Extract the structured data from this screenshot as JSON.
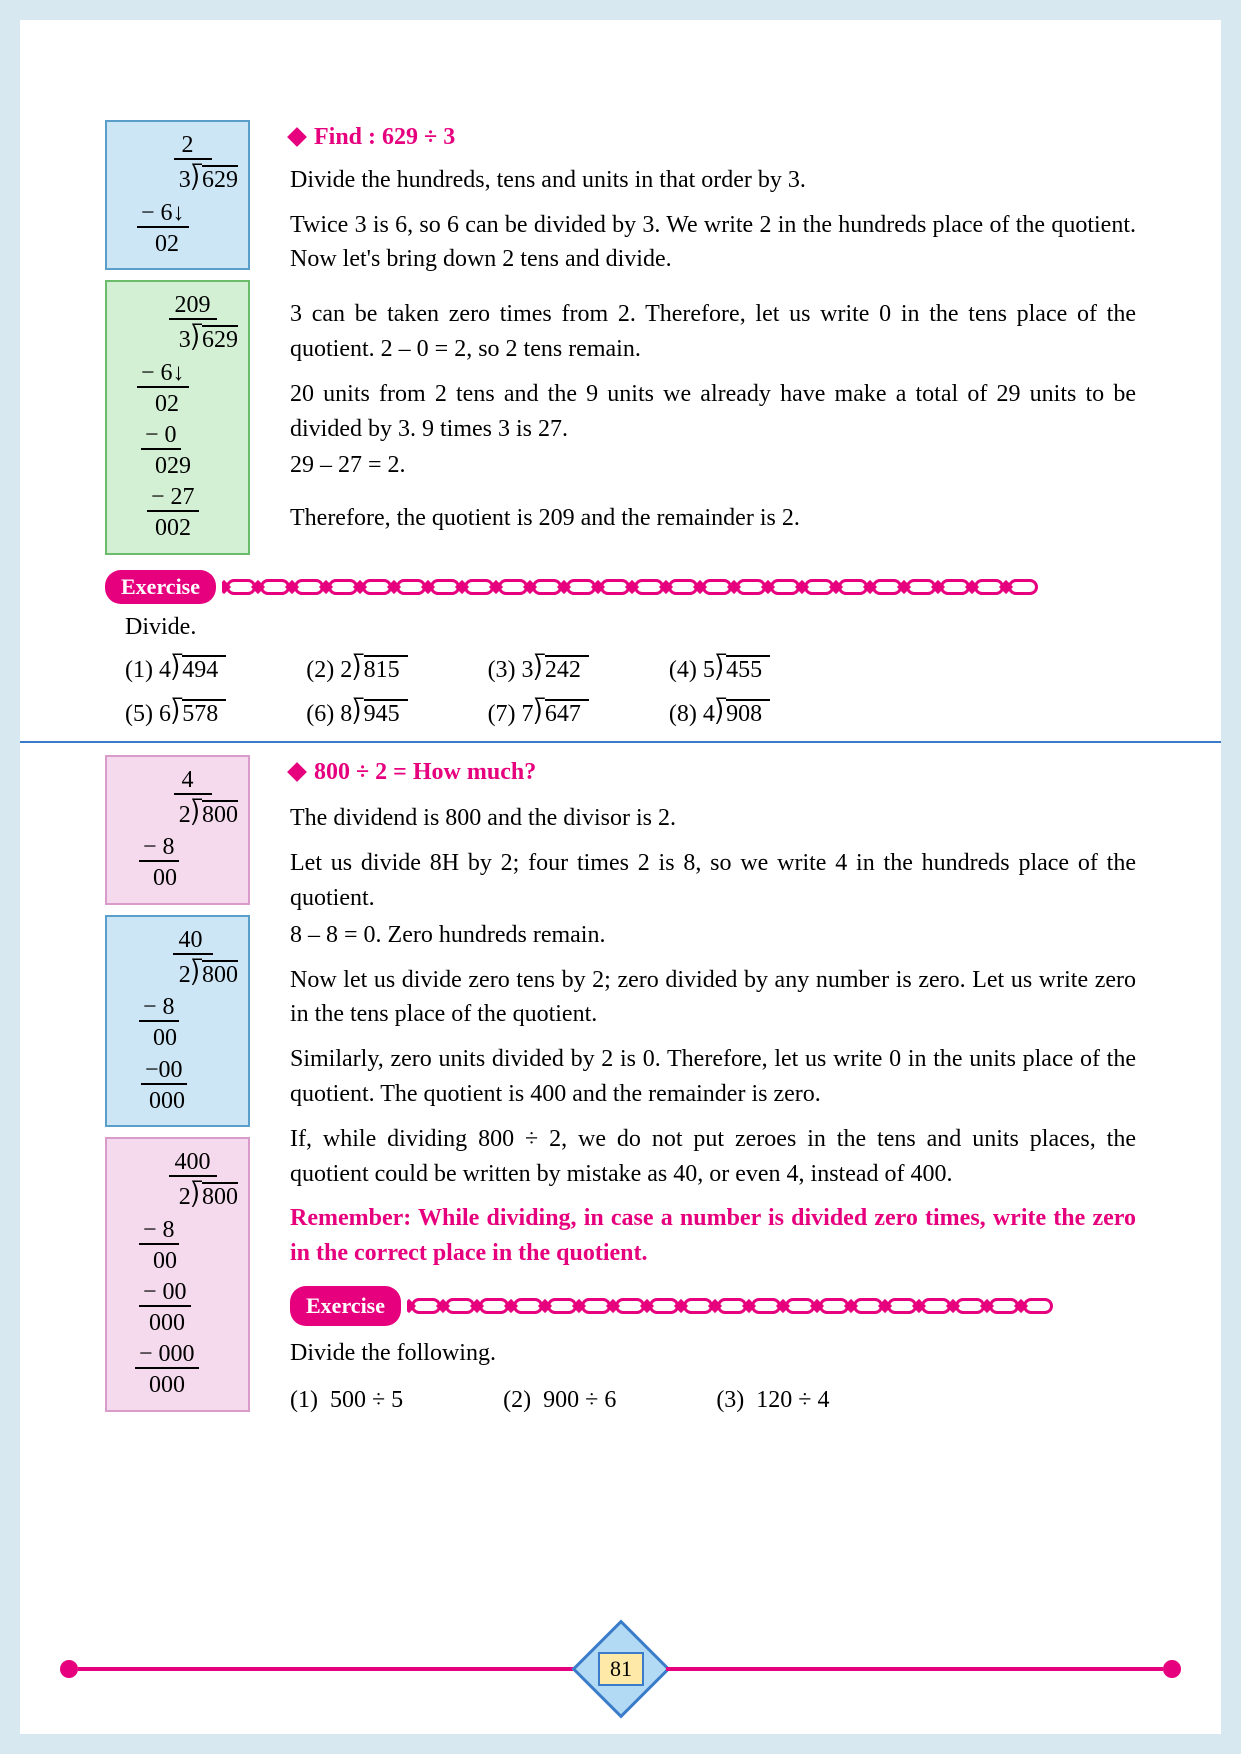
{
  "section1": {
    "heading": "Find : 629 ÷ 3",
    "box1": {
      "bg": "#cce6f5",
      "border": "#5a9fc9",
      "quotient": "2",
      "divisor": "3",
      "dividend": "629",
      "lines": [
        "− 6↓",
        "02"
      ]
    },
    "box2": {
      "bg": "#d4f0d4",
      "border": "#6abb6a",
      "quotient": "209",
      "divisor": "3",
      "dividend": "629",
      "lines": [
        "− 6↓",
        "02",
        "−  0",
        "029",
        "− 27",
        "002"
      ]
    },
    "p1": "Divide the hundreds, tens and units in that order by 3.",
    "p2": "Twice 3 is 6, so 6 can be divided by 3. We write 2 in the hundreds place of the quotient. Now let's bring down 2 tens and divide.",
    "p3": "3 can be taken zero times from 2. Therefore, let us write 0 in the tens place of the quotient. 2 – 0 = 2, so 2 tens remain.",
    "p4": "20 units from 2 tens and the 9 units we already have make a total of 29 units to be divided by 3. 9 times 3 is 27.",
    "p5": "29 – 27 = 2.",
    "p6": "Therefore, the quotient is 209 and the remainder is 2."
  },
  "exercise1": {
    "label": "Exercise",
    "instruction": "Divide.",
    "problems": [
      {
        "n": "(1)",
        "d": "4",
        "v": "494"
      },
      {
        "n": "(2)",
        "d": "2",
        "v": "815"
      },
      {
        "n": "(3)",
        "d": "3",
        "v": "242"
      },
      {
        "n": "(4)",
        "d": "5",
        "v": "455"
      },
      {
        "n": "(5)",
        "d": "6",
        "v": "578"
      },
      {
        "n": "(6)",
        "d": "8",
        "v": "945"
      },
      {
        "n": "(7)",
        "d": "7",
        "v": "647"
      },
      {
        "n": "(8)",
        "d": "4",
        "v": "908"
      }
    ]
  },
  "section2": {
    "heading": "800 ÷ 2  = How much?",
    "box1": {
      "bg": "#f5d9ed",
      "border": "#d99bc9",
      "quotient": "4",
      "divisor": "2",
      "dividend": "800",
      "lines": [
        "− 8",
        "00"
      ]
    },
    "box2": {
      "bg": "#cce6f5",
      "border": "#5a9fc9",
      "quotient": "40",
      "divisor": "2",
      "dividend": "800",
      "lines": [
        "− 8",
        "00",
        "−00",
        "000"
      ]
    },
    "box3": {
      "bg": "#f5d9ed",
      "border": "#d99bc9",
      "quotient": "400",
      "divisor": "2",
      "dividend": "800",
      "lines": [
        "− 8",
        "00",
        "− 00",
        "000",
        "− 000",
        "000"
      ]
    },
    "p1": "The dividend is 800 and the divisor is 2.",
    "p2": "Let us divide 8H by 2; four times 2 is 8, so we write 4 in the hundreds place of the quotient.",
    "p3": "8 – 8 = 0. Zero hundreds remain.",
    "p4": "Now let us divide zero tens by 2; zero divided by any number is zero. Let us write zero in the tens place of the quotient.",
    "p5": "Similarly, zero units divided by 2 is 0. Therefore, let us write 0 in the units place of the quotient. The quotient is 400 and the remainder is zero.",
    "p6": "If, while dividing 800 ÷ 2, we do not put zeroes in the tens and units places, the quotient could be written by mistake as 40, or even 4, instead of 400.",
    "remember": "Remember: While dividing, in case a number is divided zero times, write the zero in the correct place in the quotient."
  },
  "exercise2": {
    "label": "Exercise",
    "instruction": "Divide the following.",
    "problems": [
      {
        "n": "(1)",
        "t": "500 ÷ 5"
      },
      {
        "n": "(2)",
        "t": "900 ÷ 6"
      },
      {
        "n": "(3)",
        "t": "120 ÷ 4"
      }
    ]
  },
  "pageNumber": "81",
  "colors": {
    "magenta": "#e6007e",
    "blue_border": "#3a7cc9",
    "page_border": "#d8e8f0"
  }
}
